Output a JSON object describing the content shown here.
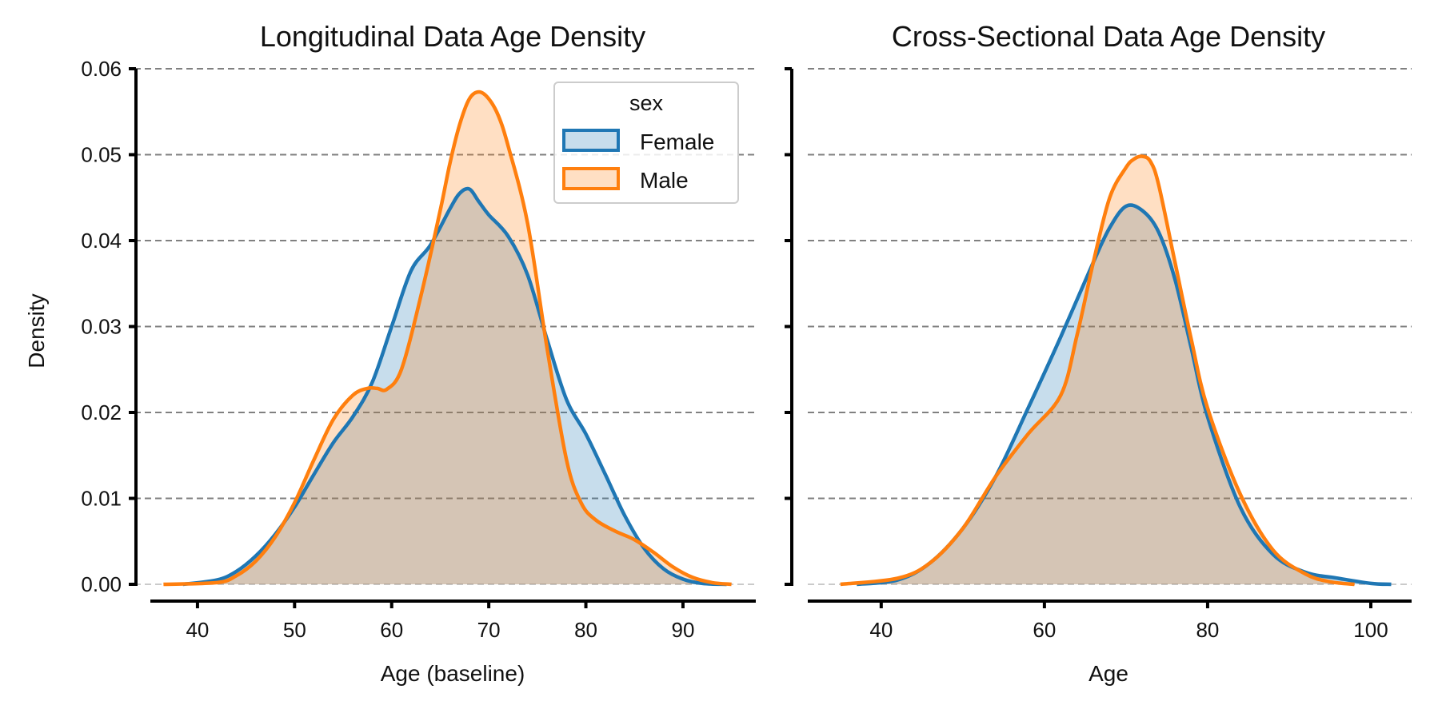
{
  "colors": {
    "female": "#1f77b4",
    "male": "#ff7f0e",
    "grid": "#808080",
    "axis": "#000000"
  },
  "legend": {
    "title": "sex",
    "placement": "top-right of left panel",
    "items": [
      {
        "label": "Female",
        "color": "#1f77b4"
      },
      {
        "label": "Male",
        "color": "#ff7f0e"
      }
    ]
  },
  "chart_data": [
    {
      "type": "area",
      "title": "Longitudinal Data Age Density",
      "xlabel": "Age (baseline)",
      "ylabel": "Density",
      "xlim": [
        33.5,
        97.5
      ],
      "ylim": [
        0,
        0.06
      ],
      "xticks": [
        40,
        50,
        60,
        70,
        80,
        90
      ],
      "yticks": [
        "0.00",
        "0.01",
        "0.02",
        "0.03",
        "0.04",
        "0.05",
        "0.06"
      ],
      "grid": "y dashed",
      "legend": true,
      "series": [
        {
          "name": "Female",
          "color": "#1f77b4",
          "x": [
            38.5,
            42,
            44,
            46,
            48,
            50,
            52,
            54,
            56,
            58,
            60,
            62,
            64,
            66,
            67,
            68,
            69,
            70,
            72,
            74,
            76,
            78,
            80,
            82,
            84,
            86,
            88,
            90,
            92,
            94.5
          ],
          "y": [
            0.0,
            0.0005,
            0.0015,
            0.0033,
            0.0058,
            0.009,
            0.0128,
            0.0165,
            0.0195,
            0.0235,
            0.03,
            0.0365,
            0.0395,
            0.0437,
            0.0455,
            0.046,
            0.0445,
            0.043,
            0.0405,
            0.036,
            0.0285,
            0.0215,
            0.0175,
            0.0128,
            0.008,
            0.0042,
            0.0018,
            0.0006,
            0.0001,
            0.0
          ]
        },
        {
          "name": "Male",
          "color": "#ff7f0e",
          "x": [
            36.5,
            42,
            44,
            46,
            48,
            50,
            52,
            54,
            56,
            57.5,
            58.5,
            59.5,
            61,
            63,
            65,
            66,
            67,
            68,
            69,
            70,
            71,
            72,
            74,
            76,
            78,
            79.5,
            81,
            83,
            85,
            87,
            89,
            91,
            93,
            95
          ],
          "y": [
            0.0,
            0.0002,
            0.001,
            0.0027,
            0.0055,
            0.0095,
            0.0145,
            0.0192,
            0.022,
            0.0228,
            0.0228,
            0.0227,
            0.025,
            0.0335,
            0.0435,
            0.049,
            0.0535,
            0.0565,
            0.0573,
            0.0565,
            0.0545,
            0.051,
            0.042,
            0.0275,
            0.0145,
            0.0095,
            0.0075,
            0.0062,
            0.0052,
            0.0037,
            0.002,
            0.0008,
            0.0002,
            0.0
          ]
        }
      ]
    },
    {
      "type": "area",
      "title": "Cross-Sectional Data Age Density",
      "xlabel": "Age",
      "ylabel": "",
      "xlim": [
        31,
        105
      ],
      "ylim": [
        0,
        0.06
      ],
      "xticks": [
        40,
        60,
        80,
        100
      ],
      "yticks": [],
      "grid": "y dashed",
      "legend": false,
      "series": [
        {
          "name": "Female",
          "color": "#1f77b4",
          "x": [
            37,
            42,
            46,
            50,
            54,
            58,
            62,
            66,
            68,
            70,
            72,
            74,
            76,
            78,
            80,
            84,
            88,
            92,
            96,
            100,
            102.5
          ],
          "y": [
            0.0,
            0.0005,
            0.0025,
            0.0065,
            0.0125,
            0.0205,
            0.0288,
            0.0375,
            0.0415,
            0.044,
            0.0435,
            0.041,
            0.0355,
            0.0275,
            0.0195,
            0.009,
            0.0035,
            0.0014,
            0.0007,
            0.0001,
            0.0
          ]
        },
        {
          "name": "Male",
          "color": "#ff7f0e",
          "x": [
            35,
            42,
            46,
            50,
            54,
            58,
            62,
            64,
            66,
            68,
            70,
            71,
            72,
            73,
            74,
            76,
            78,
            80,
            84,
            88,
            92,
            95,
            98
          ],
          "y": [
            0.0,
            0.0007,
            0.0025,
            0.0065,
            0.0125,
            0.0175,
            0.022,
            0.029,
            0.0375,
            0.045,
            0.0485,
            0.0495,
            0.0498,
            0.0492,
            0.0465,
            0.0375,
            0.0285,
            0.0205,
            0.0105,
            0.004,
            0.0012,
            0.0003,
            0.0
          ]
        }
      ]
    }
  ]
}
